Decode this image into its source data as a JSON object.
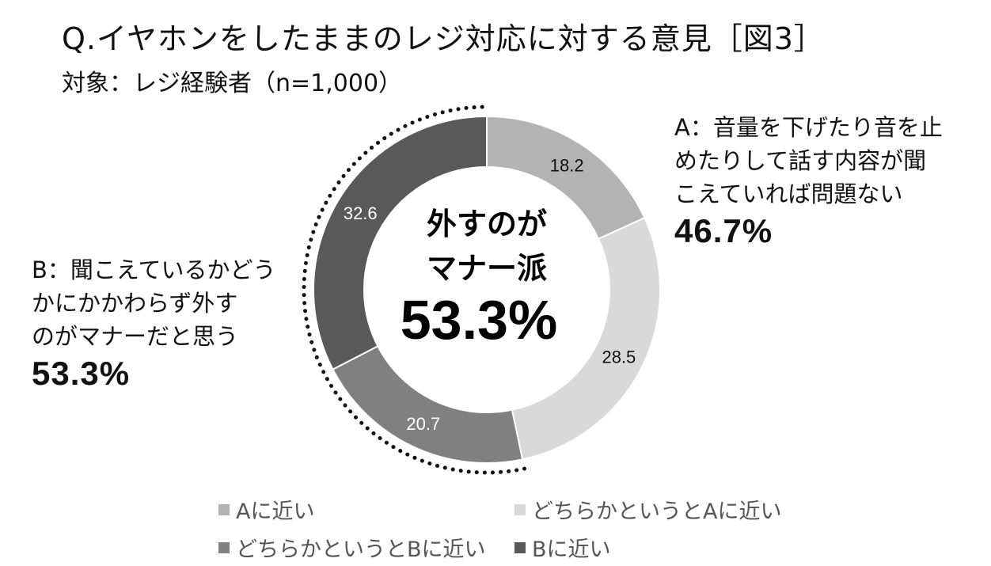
{
  "title": "Q.イヤホンをしたままのレジ対応に対する意見［図3］",
  "subtitle": "対象：レジ経験者（n=1,000）",
  "annotation_a": {
    "lines": [
      "A：音量を下げたり音を止",
      "めたりして話す内容が聞",
      "こえていれば問題ない"
    ],
    "percent": "46.7%"
  },
  "annotation_b": {
    "lines": [
      "B：聞こえているかどう",
      "かにかかわらず外す",
      "のがマナーだと思う"
    ],
    "percent": "53.3%"
  },
  "center": {
    "line1": "外すのが",
    "line2": "マナー派",
    "percent": "53.3%"
  },
  "legend": [
    {
      "label": "Aに近い",
      "color": "#b3b3b3"
    },
    {
      "label": "どちらかというとAに近い",
      "color": "#d9d9d9"
    },
    {
      "label": "どちらかというとBに近い",
      "color": "#808080"
    },
    {
      "label": "Bに近い",
      "color": "#595959"
    }
  ],
  "chart_data": {
    "type": "pie",
    "donut": true,
    "title": "Q.イヤホンをしたままのレジ対応に対する意見［図3］",
    "categories": [
      "Aに近い",
      "どちらかというとAに近い",
      "どちらかというとBに近い",
      "Bに近い"
    ],
    "values": [
      18.2,
      28.5,
      20.7,
      32.6
    ],
    "value_labels": [
      "18.2",
      "28.5",
      "20.7",
      "32.6"
    ],
    "colors": [
      "#b3b3b3",
      "#d9d9d9",
      "#808080",
      "#595959"
    ],
    "label_colors": [
      "#111111",
      "#111111",
      "#ffffff",
      "#ffffff"
    ],
    "legend_position": "bottom"
  }
}
